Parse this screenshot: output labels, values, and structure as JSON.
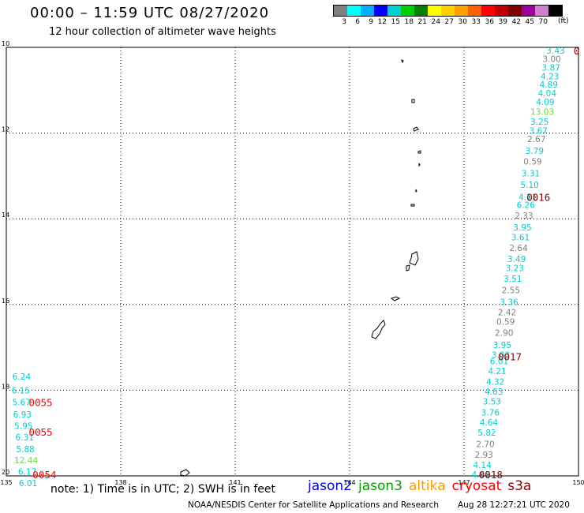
{
  "header": {
    "title": "00:00 – 11:59 UTC 08/27/2020",
    "subtitle": "12 hour collection of altimeter wave heights"
  },
  "colorbar": {
    "unit": "(ft)",
    "colors": [
      "#808080",
      "#00ffff",
      "#00b0ff",
      "#0000ff",
      "#00d0d0",
      "#00d000",
      "#008000",
      "#ffff00",
      "#ffd000",
      "#ffa000",
      "#ff6000",
      "#ff0000",
      "#c00000",
      "#800000",
      "#a000a0",
      "#d080d0",
      "#000000"
    ],
    "labels": [
      "3",
      "6",
      "9",
      "12",
      "15",
      "18",
      "21",
      "24",
      "27",
      "30",
      "33",
      "36",
      "39",
      "42",
      "45",
      "70"
    ]
  },
  "map_axes": {
    "lon_ticks": [
      "135",
      "138",
      "141",
      "144",
      "147",
      "150"
    ],
    "lat_ticks": [
      "20",
      "18",
      "16",
      "14",
      "12",
      "10"
    ]
  },
  "chart_data": {
    "type": "scatter",
    "title": "00:00 – 11:59 UTC 08/27/2020",
    "subtitle": "12 hour collection of altimeter wave heights",
    "xlim": [
      135,
      150
    ],
    "ylim": [
      10,
      20
    ],
    "x_ticks": [
      135,
      138,
      141,
      144,
      147,
      150
    ],
    "y_ticks": [
      10,
      12,
      14,
      16,
      18,
      20
    ],
    "grid": true,
    "tracks": [
      {
        "name": "east-track",
        "points": [
          {
            "lon": 149.4,
            "lat": 19.93,
            "v": "3.43",
            "c": "#00cccc"
          },
          {
            "lon": 149.3,
            "lat": 19.73,
            "v": "3.00",
            "c": "#808080"
          },
          {
            "lon": 149.28,
            "lat": 19.53,
            "v": "3.87",
            "c": "#00cccc"
          },
          {
            "lon": 149.25,
            "lat": 19.33,
            "v": "4.23",
            "c": "#00cccc"
          },
          {
            "lon": 149.22,
            "lat": 19.13,
            "v": "4.89",
            "c": "#00cccc"
          },
          {
            "lon": 149.18,
            "lat": 18.93,
            "v": "4.04",
            "c": "#00cccc"
          },
          {
            "lon": 149.13,
            "lat": 18.73,
            "v": "4.09",
            "c": "#00cccc"
          },
          {
            "lon": 149.05,
            "lat": 18.5,
            "v": "13.03",
            "c": "#66dd33"
          },
          {
            "lon": 148.98,
            "lat": 18.27,
            "v": "3.25",
            "c": "#00cccc"
          },
          {
            "lon": 148.95,
            "lat": 18.06,
            "v": "3.67",
            "c": "#00cccc"
          },
          {
            "lon": 148.9,
            "lat": 17.86,
            "v": "2.67",
            "c": "#808080"
          },
          {
            "lon": 148.85,
            "lat": 17.59,
            "v": "3.79",
            "c": "#00cccc"
          },
          {
            "lon": 148.8,
            "lat": 17.34,
            "v": "0.59",
            "c": "#808080"
          },
          {
            "lon": 148.75,
            "lat": 17.06,
            "v": "3.31",
            "c": "#00cccc"
          },
          {
            "lon": 148.72,
            "lat": 16.8,
            "v": "5.10",
            "c": "#00cccc"
          },
          {
            "lon": 148.67,
            "lat": 16.51,
            "v": "4.11",
            "c": "#00cccc"
          },
          {
            "lon": 148.62,
            "lat": 16.33,
            "v": "6.26",
            "c": "#00cccc"
          },
          {
            "lon": 148.57,
            "lat": 16.08,
            "v": "2.33",
            "c": "#808080"
          },
          {
            "lon": 148.53,
            "lat": 15.8,
            "v": "3.95",
            "c": "#00cccc"
          },
          {
            "lon": 148.48,
            "lat": 15.57,
            "v": "3.61",
            "c": "#00cccc"
          },
          {
            "lon": 148.43,
            "lat": 15.32,
            "v": "2.64",
            "c": "#808080"
          },
          {
            "lon": 148.38,
            "lat": 15.06,
            "v": "3.49",
            "c": "#00cccc"
          },
          {
            "lon": 148.33,
            "lat": 14.85,
            "v": "3.23",
            "c": "#00cccc"
          },
          {
            "lon": 148.28,
            "lat": 14.6,
            "v": "3.51",
            "c": "#00cccc"
          },
          {
            "lon": 148.23,
            "lat": 14.34,
            "v": "2.55",
            "c": "#808080"
          },
          {
            "lon": 148.18,
            "lat": 14.06,
            "v": "3.36",
            "c": "#00cccc"
          },
          {
            "lon": 148.13,
            "lat": 13.82,
            "v": "2.42",
            "c": "#808080"
          },
          {
            "lon": 148.09,
            "lat": 13.6,
            "v": "0.59",
            "c": "#808080"
          },
          {
            "lon": 148.05,
            "lat": 13.34,
            "v": "2.90",
            "c": "#808080"
          },
          {
            "lon": 148.0,
            "lat": 13.06,
            "v": "3.95",
            "c": "#00cccc"
          },
          {
            "lon": 147.96,
            "lat": 12.83,
            "v": "3.03",
            "c": "#00cccc"
          },
          {
            "lon": 147.92,
            "lat": 12.68,
            "v": "6.01",
            "c": "#00cccc"
          },
          {
            "lon": 147.87,
            "lat": 12.45,
            "v": "4.21",
            "c": "#00cccc"
          },
          {
            "lon": 147.82,
            "lat": 12.2,
            "v": "4.32",
            "c": "#00cccc"
          },
          {
            "lon": 147.78,
            "lat": 11.97,
            "v": "4.63",
            "c": "#00cccc"
          },
          {
            "lon": 147.73,
            "lat": 11.74,
            "v": "3.53",
            "c": "#00cccc"
          },
          {
            "lon": 147.69,
            "lat": 11.48,
            "v": "3.76",
            "c": "#00cccc"
          },
          {
            "lon": 147.65,
            "lat": 11.25,
            "v": "4.64",
            "c": "#00cccc"
          },
          {
            "lon": 147.6,
            "lat": 11.01,
            "v": "5.82",
            "c": "#00cccc"
          },
          {
            "lon": 147.56,
            "lat": 10.75,
            "v": "2.70",
            "c": "#808080"
          },
          {
            "lon": 147.52,
            "lat": 10.5,
            "v": "2.93",
            "c": "#808080"
          },
          {
            "lon": 147.48,
            "lat": 10.26,
            "v": "4.14",
            "c": "#00cccc"
          },
          {
            "lon": 147.44,
            "lat": 10.04,
            "v": "4.68",
            "c": "#00cccc"
          }
        ]
      },
      {
        "name": "west-track",
        "points": [
          {
            "lon": 135.4,
            "lat": 12.32,
            "v": "6.24",
            "c": "#00cccc"
          },
          {
            "lon": 135.38,
            "lat": 12.0,
            "v": "6.15",
            "c": "#00cccc"
          },
          {
            "lon": 135.4,
            "lat": 11.72,
            "v": "5.67",
            "c": "#00cccc"
          },
          {
            "lon": 135.42,
            "lat": 11.44,
            "v": "6.93",
            "c": "#00cccc"
          },
          {
            "lon": 135.45,
            "lat": 11.17,
            "v": "5.95",
            "c": "#00cccc"
          },
          {
            "lon": 135.48,
            "lat": 10.9,
            "v": "6.31",
            "c": "#00cccc"
          },
          {
            "lon": 135.5,
            "lat": 10.63,
            "v": "5.88",
            "c": "#00cccc"
          },
          {
            "lon": 135.52,
            "lat": 10.37,
            "v": "12.44",
            "c": "#66dd33"
          },
          {
            "lon": 135.55,
            "lat": 10.1,
            "v": "6.17",
            "c": "#00cccc"
          },
          {
            "lon": 135.57,
            "lat": 9.83,
            "v": "6.01",
            "c": "#00cccc"
          }
        ]
      }
    ],
    "pass_labels": [
      {
        "text": "0",
        "lon": 149.95,
        "lat": 19.93,
        "c": "#8b0000"
      },
      {
        "text": "0016",
        "lon": 148.95,
        "lat": 16.51,
        "c": "#8b0000"
      },
      {
        "text": "0017",
        "lon": 148.2,
        "lat": 12.79,
        "c": "#8b0000"
      },
      {
        "text": "0018",
        "lon": 147.7,
        "lat": 10.04,
        "c": "#8b0000"
      },
      {
        "text": "0055",
        "lon": 135.9,
        "lat": 11.72,
        "c": "#ff0000"
      },
      {
        "text": "0055",
        "lon": 135.9,
        "lat": 11.03,
        "c": "#ff0000"
      },
      {
        "text": "0054",
        "lon": 136.0,
        "lat": 10.04,
        "c": "#ff0000"
      }
    ]
  },
  "legend": {
    "items": [
      {
        "label": "jason2",
        "color": "#0000ee"
      },
      {
        "label": "jason3",
        "color": "#00a000"
      },
      {
        "label": "altika",
        "color": "#ff9900"
      },
      {
        "label": "cryosat",
        "color": "#ff0000"
      },
      {
        "label": "s3a",
        "color": "#8b0000"
      }
    ]
  },
  "footer": {
    "note": "note: 1) Time is in UTC; 2) SWH is in feet",
    "credit": "NOAA/NESDIS Center for Satellite Applications and Research",
    "timestamp": "Aug 28 12:27:21 UTC 2020"
  }
}
